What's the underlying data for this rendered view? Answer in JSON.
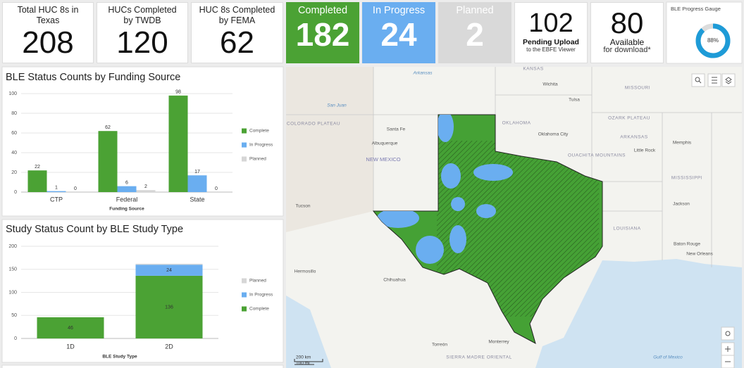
{
  "indicators": [
    {
      "title": "Total HUC 8s in Texas",
      "value": 208
    },
    {
      "title": "HUCs Completed by TWDB",
      "value": 120
    },
    {
      "title": "HUC 8s Completed by FEMA",
      "value": 62
    },
    {
      "title": "Completed",
      "value": 182,
      "color": "#4ba234"
    },
    {
      "title": "In Progress",
      "value": 24,
      "color": "#6aaef0"
    },
    {
      "title": "Planned",
      "value": 2,
      "color": "#d9d9d9"
    },
    {
      "value": 102,
      "subtitle": "Pending Upload",
      "note": "to the EBFE Viewer"
    },
    {
      "value": 80,
      "subtitle": "Available",
      "note": "for download*"
    }
  ],
  "gauge": {
    "title": "BLE Progress Gauge",
    "value": 88,
    "value_label": "88%",
    "color": "#1e9bd7"
  },
  "chart_data": [
    {
      "type": "bar",
      "stacked": false,
      "title": "BLE Status Counts by Funding Source",
      "x_label": "Funding Source",
      "categories": [
        "CTP",
        "Federal",
        "State"
      ],
      "series": [
        {
          "name": "Complete",
          "color": "#4ba234",
          "values": [
            22,
            62,
            98
          ]
        },
        {
          "name": "In Progress",
          "color": "#6aaef0",
          "values": [
            1,
            6,
            17
          ]
        },
        {
          "name": "Planned",
          "color": "#d6d6d6",
          "values": [
            0,
            2,
            0
          ]
        }
      ],
      "ylim": [
        0,
        100
      ],
      "yticks": [
        0,
        20,
        40,
        60,
        80,
        100
      ],
      "grid": true,
      "legend": "right",
      "legend_reversed": false
    },
    {
      "type": "bar",
      "stacked": true,
      "title": "Study Status Count by BLE Study Type",
      "x_label": "BLE Study Type",
      "categories": [
        "1D",
        "2D"
      ],
      "series": [
        {
          "name": "Complete",
          "color": "#4ba234",
          "values": [
            46,
            136
          ],
          "labels": true
        },
        {
          "name": "In Progress",
          "color": "#6aaef0",
          "values": [
            0,
            24
          ],
          "labels": true
        },
        {
          "name": "Planned",
          "color": "#d6d6d6",
          "values": [
            0,
            2
          ],
          "labels": false
        }
      ],
      "ylim": [
        0,
        200
      ],
      "yticks": [
        0,
        50,
        100,
        150,
        200
      ],
      "grid": true,
      "legend": "right",
      "legend_reversed": true
    }
  ],
  "map": {
    "labels": [
      "KANSAS",
      "Wichita",
      "MISSOURI",
      "OKLAHOMA",
      "Tulsa",
      "Oklahoma City",
      "OZARK PLATEAU",
      "ARKANSAS",
      "Memphis",
      "Little Rock",
      "OUACHITA MOUNTAINS",
      "COLORADO PLATEAU",
      "Santa Fe",
      "Albuquerque",
      "NEW MEXICO",
      "MISSISSIPPI",
      "Jackson",
      "LOUISIANA",
      "Baton Rouge",
      "New Orleans",
      "Tucson",
      "Hermosillo",
      "Chihuahua",
      "Torreón",
      "Monterrey",
      "SIERRA MADRE ORIENTAL",
      "Gulf of Mexico",
      "San Juan",
      "Arkansas"
    ],
    "scale": [
      "200 km",
      "100 mi"
    ]
  }
}
